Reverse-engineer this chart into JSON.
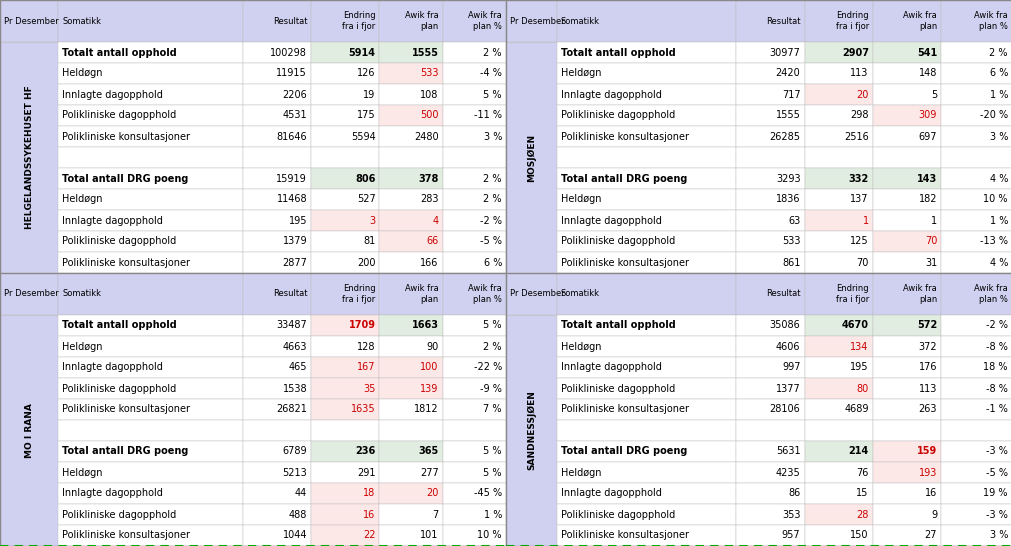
{
  "header_bg": "#d0d0f0",
  "row_label_bg": "#d0d0f0",
  "green_bg": "#e0ede0",
  "pink_bg": "#fde8e8",
  "red_text": "#cc0000",
  "black_text": "#000000",
  "grid_color": "#bbbbbb",
  "dashed_color": "#00aa00",
  "outer_border": "#888888",
  "tables": [
    {
      "region_label": "HELGELANDSSYKEHUSET HF",
      "rows": [
        {
          "label": "Totalt antall opphold",
          "bold": true,
          "resultat": "100298",
          "endring": "5914",
          "awik": "1555",
          "awik_pct": "2 %",
          "endring_color": "black",
          "awik_color": "black",
          "endring_bg": "green",
          "awik_bg": "green"
        },
        {
          "label": "Heldøgn",
          "bold": false,
          "resultat": "11915",
          "endring": "126",
          "awik": "533",
          "awik_pct": "-4 %",
          "endring_color": "black",
          "awik_color": "red",
          "endring_bg": "white",
          "awik_bg": "pink"
        },
        {
          "label": "Innlagte dagopphold",
          "bold": false,
          "resultat": "2206",
          "endring": "19",
          "awik": "108",
          "awik_pct": "5 %",
          "endring_color": "black",
          "awik_color": "black",
          "endring_bg": "white",
          "awik_bg": "white"
        },
        {
          "label": "Polikliniske dagopphold",
          "bold": false,
          "resultat": "4531",
          "endring": "175",
          "awik": "500",
          "awik_pct": "-11 %",
          "endring_color": "black",
          "awik_color": "red",
          "endring_bg": "white",
          "awik_bg": "pink"
        },
        {
          "label": "Polikliniske konsultasjoner",
          "bold": false,
          "resultat": "81646",
          "endring": "5594",
          "awik": "2480",
          "awik_pct": "3 %",
          "endring_color": "black",
          "awik_color": "black",
          "endring_bg": "white",
          "awik_bg": "white"
        },
        {
          "label": "",
          "bold": false,
          "resultat": "",
          "endring": "",
          "awik": "",
          "awik_pct": "",
          "endring_color": "black",
          "awik_color": "black",
          "endring_bg": "white",
          "awik_bg": "white"
        },
        {
          "label": "Total antall DRG poeng",
          "bold": true,
          "resultat": "15919",
          "endring": "806",
          "awik": "378",
          "awik_pct": "2 %",
          "endring_color": "black",
          "awik_color": "black",
          "endring_bg": "green",
          "awik_bg": "green"
        },
        {
          "label": "Heldøgn",
          "bold": false,
          "resultat": "11468",
          "endring": "527",
          "awik": "283",
          "awik_pct": "2 %",
          "endring_color": "black",
          "awik_color": "black",
          "endring_bg": "white",
          "awik_bg": "white"
        },
        {
          "label": "Innlagte dagopphold",
          "bold": false,
          "resultat": "195",
          "endring": "3",
          "awik": "4",
          "awik_pct": "-2 %",
          "endring_color": "red",
          "awik_color": "red",
          "endring_bg": "pink",
          "awik_bg": "pink"
        },
        {
          "label": "Polikliniske dagopphold",
          "bold": false,
          "resultat": "1379",
          "endring": "81",
          "awik": "66",
          "awik_pct": "-5 %",
          "endring_color": "black",
          "awik_color": "red",
          "endring_bg": "white",
          "awik_bg": "pink"
        },
        {
          "label": "Polikliniske konsultasjoner",
          "bold": false,
          "resultat": "2877",
          "endring": "200",
          "awik": "166",
          "awik_pct": "6 %",
          "endring_color": "black",
          "awik_color": "black",
          "endring_bg": "white",
          "awik_bg": "white"
        }
      ]
    },
    {
      "region_label": "MOSJØEN",
      "rows": [
        {
          "label": "Totalt antall opphold",
          "bold": true,
          "resultat": "30977",
          "endring": "2907",
          "awik": "541",
          "awik_pct": "2 %",
          "endring_color": "black",
          "awik_color": "black",
          "endring_bg": "green",
          "awik_bg": "green"
        },
        {
          "label": "Heldøgn",
          "bold": false,
          "resultat": "2420",
          "endring": "113",
          "awik": "148",
          "awik_pct": "6 %",
          "endring_color": "black",
          "awik_color": "black",
          "endring_bg": "white",
          "awik_bg": "white"
        },
        {
          "label": "Innlagte dagopphold",
          "bold": false,
          "resultat": "717",
          "endring": "20",
          "awik": "5",
          "awik_pct": "1 %",
          "endring_color": "red",
          "awik_color": "black",
          "endring_bg": "pink",
          "awik_bg": "white"
        },
        {
          "label": "Polikliniske dagopphold",
          "bold": false,
          "resultat": "1555",
          "endring": "298",
          "awik": "309",
          "awik_pct": "-20 %",
          "endring_color": "black",
          "awik_color": "red",
          "endring_bg": "white",
          "awik_bg": "pink"
        },
        {
          "label": "Polikliniske konsultasjoner",
          "bold": false,
          "resultat": "26285",
          "endring": "2516",
          "awik": "697",
          "awik_pct": "3 %",
          "endring_color": "black",
          "awik_color": "black",
          "endring_bg": "white",
          "awik_bg": "white"
        },
        {
          "label": "",
          "bold": false,
          "resultat": "",
          "endring": "",
          "awik": "",
          "awik_pct": "",
          "endring_color": "black",
          "awik_color": "black",
          "endring_bg": "white",
          "awik_bg": "white"
        },
        {
          "label": "Total antall DRG poeng",
          "bold": true,
          "resultat": "3293",
          "endring": "332",
          "awik": "143",
          "awik_pct": "4 %",
          "endring_color": "black",
          "awik_color": "black",
          "endring_bg": "green",
          "awik_bg": "green"
        },
        {
          "label": "Heldøgn",
          "bold": false,
          "resultat": "1836",
          "endring": "137",
          "awik": "182",
          "awik_pct": "10 %",
          "endring_color": "black",
          "awik_color": "black",
          "endring_bg": "white",
          "awik_bg": "white"
        },
        {
          "label": "Innlagte dagopphold",
          "bold": false,
          "resultat": "63",
          "endring": "1",
          "awik": "1",
          "awik_pct": "1 %",
          "endring_color": "red",
          "awik_color": "black",
          "endring_bg": "pink",
          "awik_bg": "white"
        },
        {
          "label": "Polikliniske dagopphold",
          "bold": false,
          "resultat": "533",
          "endring": "125",
          "awik": "70",
          "awik_pct": "-13 %",
          "endring_color": "black",
          "awik_color": "red",
          "endring_bg": "white",
          "awik_bg": "pink"
        },
        {
          "label": "Polikliniske konsultasjoner",
          "bold": false,
          "resultat": "861",
          "endring": "70",
          "awik": "31",
          "awik_pct": "4 %",
          "endring_color": "black",
          "awik_color": "black",
          "endring_bg": "white",
          "awik_bg": "white"
        }
      ]
    },
    {
      "region_label": "MO I RANA",
      "rows": [
        {
          "label": "Totalt antall opphold",
          "bold": true,
          "resultat": "33487",
          "endring": "1709",
          "awik": "1663",
          "awik_pct": "5 %",
          "endring_color": "red",
          "awik_color": "black",
          "endring_bg": "pink",
          "awik_bg": "green"
        },
        {
          "label": "Heldøgn",
          "bold": false,
          "resultat": "4663",
          "endring": "128",
          "awik": "90",
          "awik_pct": "2 %",
          "endring_color": "black",
          "awik_color": "black",
          "endring_bg": "white",
          "awik_bg": "white"
        },
        {
          "label": "Innlagte dagopphold",
          "bold": false,
          "resultat": "465",
          "endring": "167",
          "awik": "100",
          "awik_pct": "-22 %",
          "endring_color": "red",
          "awik_color": "red",
          "endring_bg": "pink",
          "awik_bg": "pink"
        },
        {
          "label": "Polikliniske dagopphold",
          "bold": false,
          "resultat": "1538",
          "endring": "35",
          "awik": "139",
          "awik_pct": "-9 %",
          "endring_color": "red",
          "awik_color": "red",
          "endring_bg": "pink",
          "awik_bg": "pink"
        },
        {
          "label": "Polikliniske konsultasjoner",
          "bold": false,
          "resultat": "26821",
          "endring": "1635",
          "awik": "1812",
          "awik_pct": "7 %",
          "endring_color": "red",
          "awik_color": "black",
          "endring_bg": "pink",
          "awik_bg": "white"
        },
        {
          "label": "",
          "bold": false,
          "resultat": "",
          "endring": "",
          "awik": "",
          "awik_pct": "",
          "endring_color": "black",
          "awik_color": "black",
          "endring_bg": "white",
          "awik_bg": "white"
        },
        {
          "label": "Total antall DRG poeng",
          "bold": true,
          "resultat": "6789",
          "endring": "236",
          "awik": "365",
          "awik_pct": "5 %",
          "endring_color": "black",
          "awik_color": "black",
          "endring_bg": "green",
          "awik_bg": "green"
        },
        {
          "label": "Heldøgn",
          "bold": false,
          "resultat": "5213",
          "endring": "291",
          "awik": "277",
          "awik_pct": "5 %",
          "endring_color": "black",
          "awik_color": "black",
          "endring_bg": "white",
          "awik_bg": "white"
        },
        {
          "label": "Innlagte dagopphold",
          "bold": false,
          "resultat": "44",
          "endring": "18",
          "awik": "20",
          "awik_pct": "-45 %",
          "endring_color": "red",
          "awik_color": "red",
          "endring_bg": "pink",
          "awik_bg": "pink"
        },
        {
          "label": "Polikliniske dagopphold",
          "bold": false,
          "resultat": "488",
          "endring": "16",
          "awik": "7",
          "awik_pct": "1 %",
          "endring_color": "red",
          "awik_color": "black",
          "endring_bg": "pink",
          "awik_bg": "white"
        },
        {
          "label": "Polikliniske konsultasjoner",
          "bold": false,
          "resultat": "1044",
          "endring": "22",
          "awik": "101",
          "awik_pct": "10 %",
          "endring_color": "red",
          "awik_color": "black",
          "endring_bg": "pink",
          "awik_bg": "white"
        }
      ]
    },
    {
      "region_label": "SANDNESSJØEN",
      "rows": [
        {
          "label": "Totalt antall opphold",
          "bold": true,
          "resultat": "35086",
          "endring": "4670",
          "awik": "572",
          "awik_pct": "-2 %",
          "endring_color": "black",
          "awik_color": "black",
          "endring_bg": "green",
          "awik_bg": "green"
        },
        {
          "label": "Heldøgn",
          "bold": false,
          "resultat": "4606",
          "endring": "134",
          "awik": "372",
          "awik_pct": "-8 %",
          "endring_color": "red",
          "awik_color": "black",
          "endring_bg": "pink",
          "awik_bg": "white"
        },
        {
          "label": "Innlagte dagopphold",
          "bold": false,
          "resultat": "997",
          "endring": "195",
          "awik": "176",
          "awik_pct": "18 %",
          "endring_color": "black",
          "awik_color": "black",
          "endring_bg": "white",
          "awik_bg": "white"
        },
        {
          "label": "Polikliniske dagopphold",
          "bold": false,
          "resultat": "1377",
          "endring": "80",
          "awik": "113",
          "awik_pct": "-8 %",
          "endring_color": "red",
          "awik_color": "black",
          "endring_bg": "pink",
          "awik_bg": "white"
        },
        {
          "label": "Polikliniske konsultasjoner",
          "bold": false,
          "resultat": "28106",
          "endring": "4689",
          "awik": "263",
          "awik_pct": "-1 %",
          "endring_color": "black",
          "awik_color": "black",
          "endring_bg": "white",
          "awik_bg": "white"
        },
        {
          "label": "",
          "bold": false,
          "resultat": "",
          "endring": "",
          "awik": "",
          "awik_pct": "",
          "endring_color": "black",
          "awik_color": "black",
          "endring_bg": "white",
          "awik_bg": "white"
        },
        {
          "label": "Total antall DRG poeng",
          "bold": true,
          "resultat": "5631",
          "endring": "214",
          "awik": "159",
          "awik_pct": "-3 %",
          "endring_color": "black",
          "awik_color": "red",
          "endring_bg": "green",
          "awik_bg": "pink"
        },
        {
          "label": "Heldøgn",
          "bold": false,
          "resultat": "4235",
          "endring": "76",
          "awik": "193",
          "awik_pct": "-5 %",
          "endring_color": "black",
          "awik_color": "red",
          "endring_bg": "white",
          "awik_bg": "pink"
        },
        {
          "label": "Innlagte dagopphold",
          "bold": false,
          "resultat": "86",
          "endring": "15",
          "awik": "16",
          "awik_pct": "19 %",
          "endring_color": "black",
          "awik_color": "black",
          "endring_bg": "white",
          "awik_bg": "white"
        },
        {
          "label": "Polikliniske dagopphold",
          "bold": false,
          "resultat": "353",
          "endring": "28",
          "awik": "9",
          "awik_pct": "-3 %",
          "endring_color": "red",
          "awik_color": "black",
          "endring_bg": "pink",
          "awik_bg": "white"
        },
        {
          "label": "Polikliniske konsultasjoner",
          "bold": false,
          "resultat": "957",
          "endring": "150",
          "awik": "27",
          "awik_pct": "3 %",
          "endring_color": "black",
          "awik_color": "black",
          "endring_bg": "white",
          "awik_bg": "white"
        }
      ]
    }
  ]
}
